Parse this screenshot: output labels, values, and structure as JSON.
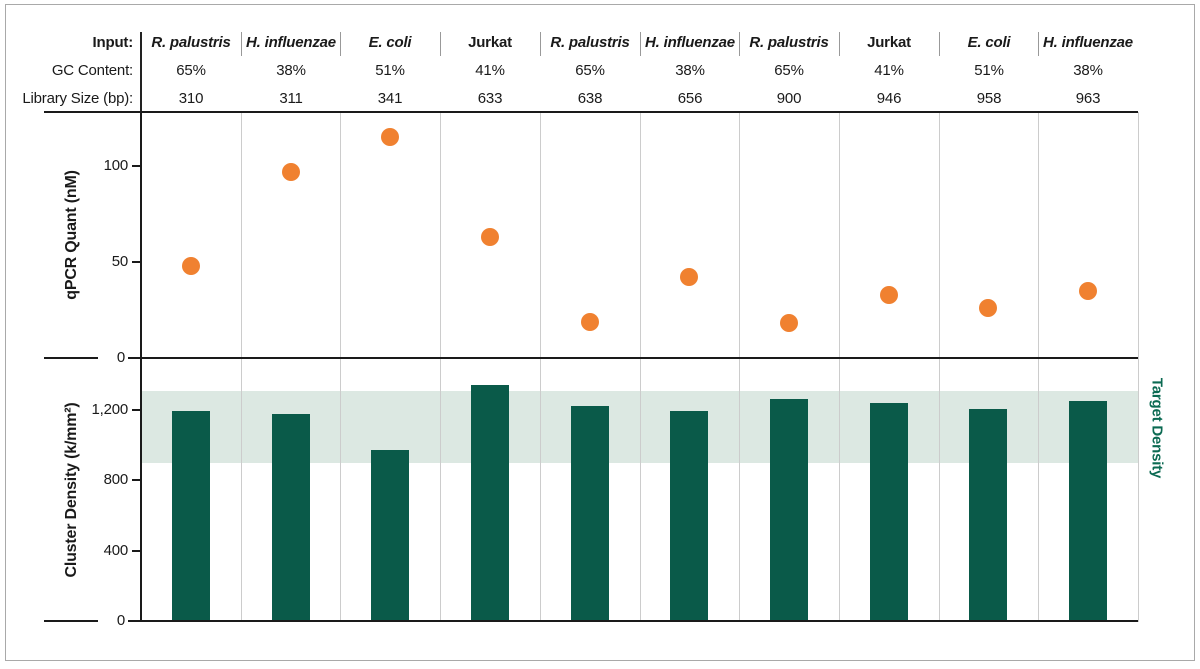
{
  "figure": {
    "header": {
      "row_labels": {
        "input": "Input:",
        "gc": "GC Content:",
        "library": "Library Size (bp):"
      },
      "columns": [
        {
          "input": "R. palustris",
          "italic": true,
          "gc_content": "65%",
          "library_size_bp": "310"
        },
        {
          "input": "H. influenzae",
          "italic": true,
          "gc_content": "38%",
          "library_size_bp": "311"
        },
        {
          "input": "E. coli",
          "italic": true,
          "gc_content": "51%",
          "library_size_bp": "341"
        },
        {
          "input": "Jurkat",
          "italic": false,
          "gc_content": "41%",
          "library_size_bp": "633"
        },
        {
          "input": "R. palustris",
          "italic": true,
          "gc_content": "65%",
          "library_size_bp": "638"
        },
        {
          "input": "H. influenzae",
          "italic": true,
          "gc_content": "38%",
          "library_size_bp": "656"
        },
        {
          "input": "R. palustris",
          "italic": true,
          "gc_content": "65%",
          "library_size_bp": "900"
        },
        {
          "input": "Jurkat",
          "italic": false,
          "gc_content": "41%",
          "library_size_bp": "946"
        },
        {
          "input": "E. coli",
          "italic": true,
          "gc_content": "51%",
          "library_size_bp": "958"
        },
        {
          "input": "H. influenzae",
          "italic": true,
          "gc_content": "38%",
          "library_size_bp": "963"
        }
      ]
    }
  },
  "chart_data": [
    {
      "type": "scatter",
      "ylabel": "qPCR Quant (nM)",
      "ylim": [
        0,
        128
      ],
      "yticks": [
        0,
        50,
        100
      ],
      "ytick_labels": [
        "0",
        "50",
        "100"
      ],
      "categories": [
        "R. palustris",
        "H. influenzae",
        "E. coli",
        "Jurkat",
        "R. palustris",
        "H. influenzae",
        "R. palustris",
        "Jurkat",
        "E. coli",
        "H. influenzae"
      ],
      "values": [
        48,
        97,
        115,
        63,
        19,
        42,
        18,
        33,
        26,
        35
      ],
      "marker_color": "#F08130",
      "grid": "vertical column separators",
      "legend": "none"
    },
    {
      "type": "bar",
      "ylabel": "Cluster Density (k/mm²)",
      "ylim": [
        0,
        1480
      ],
      "yticks": [
        0,
        400,
        800,
        1200
      ],
      "ytick_labels": [
        "0",
        "400",
        "800",
        "1,200"
      ],
      "categories": [
        "R. palustris",
        "H. influenzae",
        "E. coli",
        "Jurkat",
        "R. palustris",
        "H. influenzae",
        "R. palustris",
        "Jurkat",
        "E. coli",
        "H. influenzae"
      ],
      "values": [
        1195,
        1180,
        975,
        1340,
        1225,
        1195,
        1265,
        1240,
        1205,
        1250
      ],
      "bar_color": "#0A5A49",
      "target_band": {
        "label": "Target Density",
        "from": 900,
        "to": 1310,
        "fill": "#DCE8E2",
        "label_color": "#0B6A52"
      },
      "grid": "vertical column separators",
      "legend": "none"
    }
  ],
  "colors": {
    "accent_orange": "#F08130",
    "accent_green": "#0A5A49",
    "band_fill": "#DCE8E2",
    "band_label": "#0B6A52",
    "axis_line": "#1A1A1A",
    "gridline": "#CCCCCC",
    "header_separator": "#999999",
    "figure_border": "#A9A9A9"
  }
}
